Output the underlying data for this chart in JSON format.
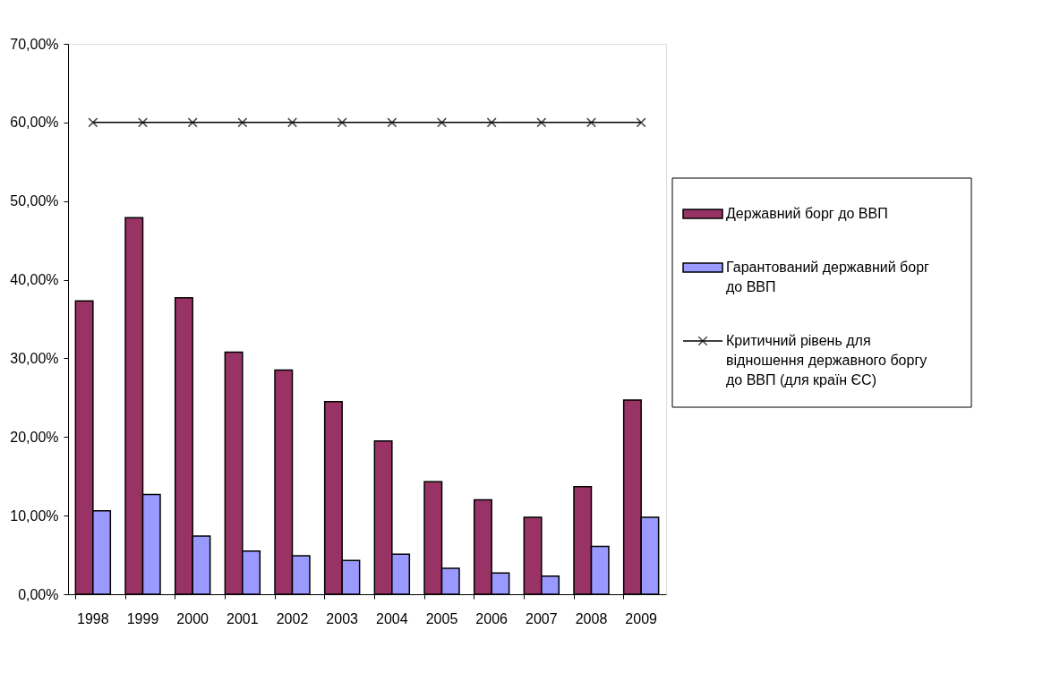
{
  "chart_data": {
    "type": "bar",
    "categories": [
      "1998",
      "1999",
      "2000",
      "2001",
      "2002",
      "2003",
      "2004",
      "2005",
      "2006",
      "2007",
      "2008",
      "2009"
    ],
    "series": [
      {
        "name": "Державний борг до ВВП",
        "color": "#993366",
        "values": [
          37.3,
          47.9,
          37.7,
          30.8,
          28.5,
          24.5,
          19.5,
          14.3,
          12.0,
          9.8,
          13.7,
          24.7
        ]
      },
      {
        "name": "Гарантований державний борг до ВВП",
        "color": "#9999ff",
        "values": [
          10.6,
          12.7,
          7.4,
          5.5,
          4.9,
          4.3,
          5.1,
          3.3,
          2.7,
          2.3,
          6.1,
          9.8
        ]
      },
      {
        "name": "Критичний рівень для відношення державного боргу до ВВП (для країн ЄС)",
        "type": "line",
        "color": "#000000",
        "values": [
          60,
          60,
          60,
          60,
          60,
          60,
          60,
          60,
          60,
          60,
          60,
          60
        ]
      }
    ],
    "ylim": [
      0,
      70
    ],
    "yticks": [
      {
        "value": 0,
        "label": "0,00%"
      },
      {
        "value": 10,
        "label": "10,00%"
      },
      {
        "value": 20,
        "label": "20,00%"
      },
      {
        "value": 30,
        "label": "30,00%"
      },
      {
        "value": 40,
        "label": "40,00%"
      },
      {
        "value": 50,
        "label": "50,00%"
      },
      {
        "value": 60,
        "label": "60,00%"
      },
      {
        "value": 70,
        "label": "70,00%"
      }
    ],
    "marker": "cross",
    "line_style": "solid",
    "grid": false,
    "legend": "right"
  }
}
